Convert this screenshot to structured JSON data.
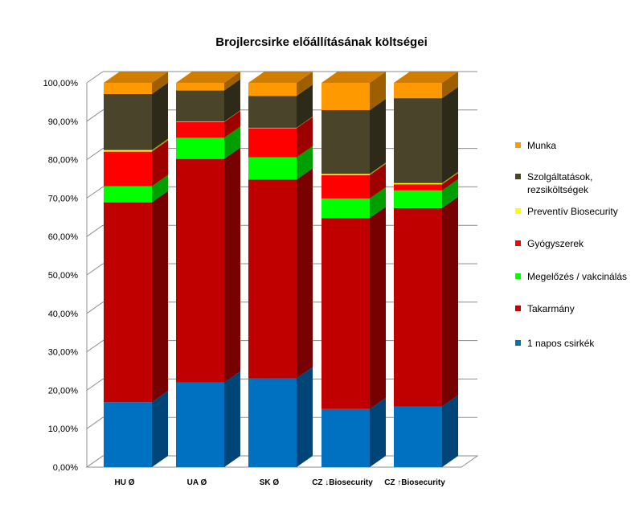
{
  "chart_data": {
    "type": "bar",
    "stacked": true,
    "three_d": true,
    "title": "Brojlercsirke előállításának költségei",
    "categories": [
      "HU Ø",
      "UA Ø",
      "SK Ø",
      "CZ ↓Biosecurity",
      "CZ ↑Biosecurity"
    ],
    "ylim": [
      0,
      100
    ],
    "yticks": [
      "0,00%",
      "10,00%",
      "20,00%",
      "30,00%",
      "40,00%",
      "50,00%",
      "60,00%",
      "70,00%",
      "80,00%",
      "90,00%",
      "100,00%"
    ],
    "grid": true,
    "legend_position": "right",
    "series": [
      {
        "name": "1 napos csirkék",
        "color": "#0070C0",
        "values": [
          16.9,
          22.0,
          23.1,
          15.1,
          15.8
        ]
      },
      {
        "name": "Takarmány",
        "color": "#C00000",
        "values": [
          52.0,
          58.2,
          51.7,
          49.7,
          51.6
        ]
      },
      {
        "name": "Megelőzés / vakcinálás",
        "color": "#00FF00",
        "values": [
          4.2,
          5.5,
          5.8,
          5.1,
          4.6
        ]
      },
      {
        "name": "Gyógyszerek",
        "color": "#FF0000",
        "values": [
          9.0,
          4.1,
          7.6,
          6.1,
          1.6
        ]
      },
      {
        "name": "Preventív Biosecurity",
        "color": "#FFFF00",
        "values": [
          0.4,
          0.1,
          0.1,
          0.3,
          0.3
        ]
      },
      {
        "name": "Szolgáltatások, rezsiköltségek",
        "color": "#4A442A",
        "values": [
          14.6,
          8.1,
          8.3,
          16.6,
          22.1
        ]
      },
      {
        "name": "Munka",
        "color": "#FF9900",
        "values": [
          2.9,
          2.0,
          3.4,
          7.1,
          4.0
        ]
      }
    ]
  }
}
